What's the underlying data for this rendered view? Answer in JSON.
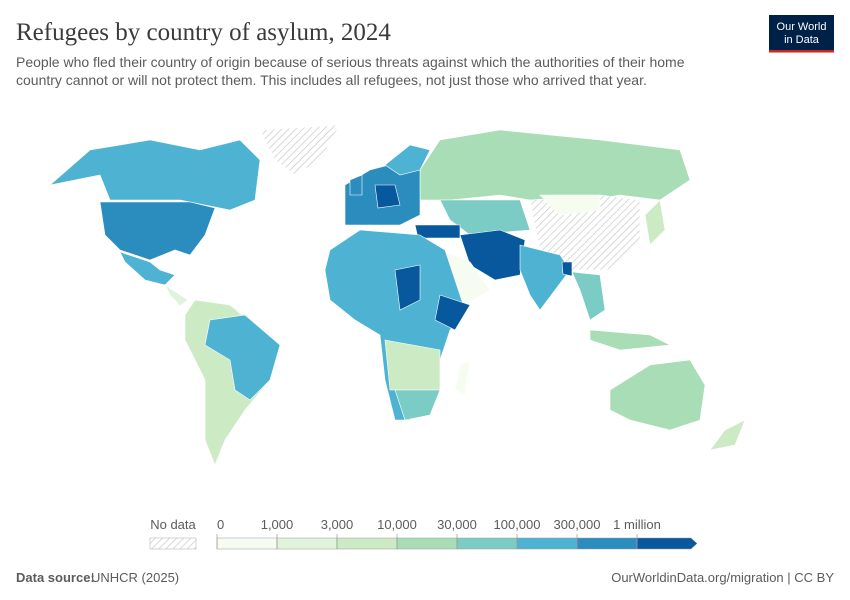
{
  "header": {
    "title": "Refugees by country of asylum, 2024",
    "subtitle": [
      "People who fled their country of origin because of serious threats against which the authorities of their home",
      "country cannot or will not protect them. This includes all refugees, not just those who arrived that year."
    ],
    "logo": [
      "Our World",
      "in Data"
    ]
  },
  "legend": {
    "no_data": "No data",
    "ticks": [
      "0",
      "1,000",
      "3,000",
      "10,000",
      "30,000",
      "100,000",
      "300,000",
      "1 million"
    ],
    "colors": [
      "#f7fcf0",
      "#e0f3db",
      "#ccebc5",
      "#a8ddb5",
      "#7bccc4",
      "#4eb3d3",
      "#2b8cbe",
      "#08589e"
    ]
  },
  "footer": {
    "source_label": "Data source:",
    "source": "UNHCR (2025)",
    "url": "OurWorldinData.org/migration | CC BY"
  }
}
